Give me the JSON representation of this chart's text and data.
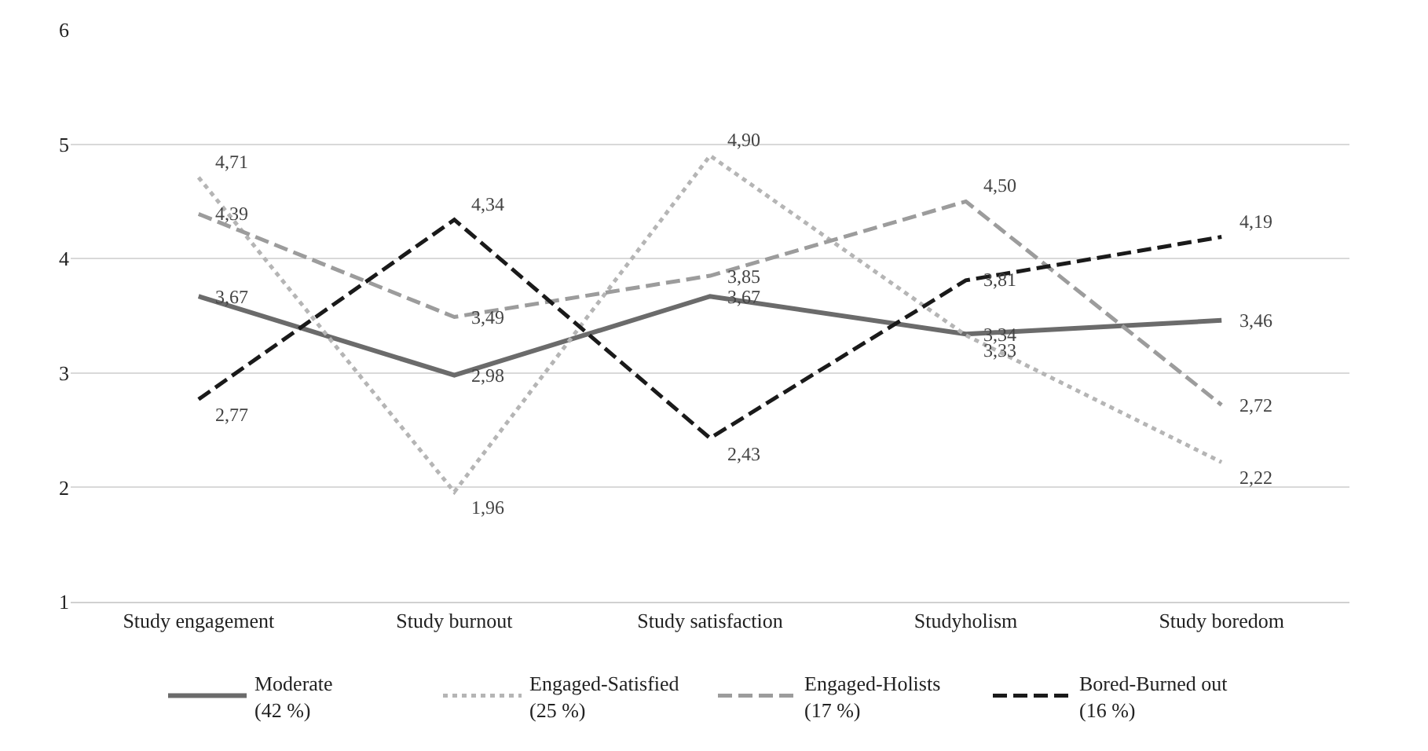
{
  "chart_data": {
    "type": "line",
    "categories": [
      "Study engagement",
      "Study burnout",
      "Study satisfaction",
      "Studyholism",
      "Study boredom"
    ],
    "series": [
      {
        "name": "Moderate\n(42 %)",
        "color": "#6b6b6b",
        "line_style": "solid",
        "values": [
          3.67,
          2.98,
          3.67,
          3.34,
          3.46
        ],
        "value_labels": [
          "3,67",
          "2,98",
          "3,67",
          "3,34",
          "3,46"
        ]
      },
      {
        "name": "Engaged-Satisfied\n(25 %)",
        "color": "#b5b5b5",
        "line_style": "dotted",
        "values": [
          4.71,
          1.96,
          4.9,
          3.33,
          2.22
        ],
        "value_labels": [
          "4,71",
          "1,96",
          "4,90",
          "3,33",
          "2,22"
        ]
      },
      {
        "name": "Engaged-Holists\n(17 %)",
        "color": "#9c9c9c",
        "line_style": "dashed",
        "values": [
          4.39,
          3.49,
          3.85,
          4.5,
          2.72
        ],
        "value_labels": [
          "4,39",
          "3,49",
          "3,85",
          "4,50",
          "2,72"
        ]
      },
      {
        "name": "Bored-Burned out\n(16 %)",
        "color": "#1a1a1a",
        "line_style": "dashed",
        "values": [
          2.77,
          4.34,
          2.43,
          3.81,
          4.19
        ],
        "value_labels": [
          "2,77",
          "4,34",
          "2,43",
          "3,81",
          "4,19"
        ]
      }
    ],
    "ylim": [
      1,
      6
    ],
    "yticks": [
      1,
      2,
      3,
      4,
      5,
      6
    ],
    "grid": "y",
    "legend": "bottom",
    "marker": "none"
  }
}
